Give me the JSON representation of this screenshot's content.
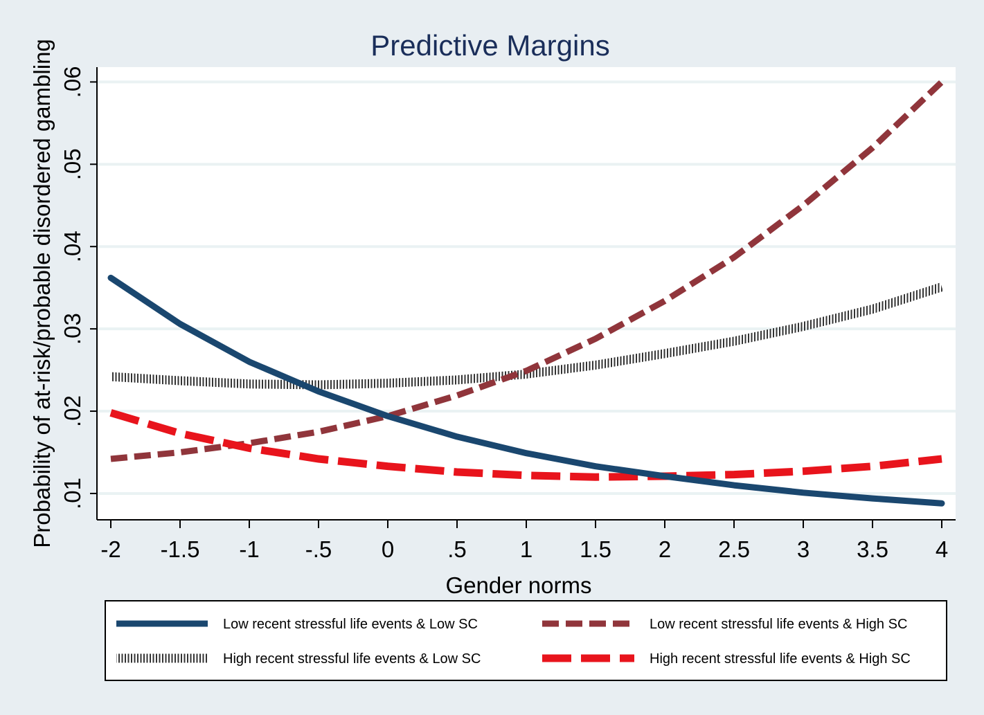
{
  "chart_data": {
    "type": "line",
    "title": "Predictive Margins",
    "xlabel": "Gender norms",
    "ylabel": "Probability of at-risk/probable disordered gambling",
    "x": [
      -2,
      -1.5,
      -1,
      -0.5,
      0,
      0.5,
      1,
      1.5,
      2,
      2.5,
      3,
      3.5,
      4
    ],
    "x_tick_labels": [
      "-2",
      "-1.5",
      "-1",
      "-.5",
      "0",
      ".5",
      "1",
      "1.5",
      "2",
      "2.5",
      "3",
      "3.5",
      "4"
    ],
    "y_ticks": [
      0.01,
      0.02,
      0.03,
      0.04,
      0.05,
      0.06
    ],
    "y_tick_labels": [
      ".01",
      ".02",
      ".03",
      ".04",
      ".05",
      ".06"
    ],
    "xlim": [
      -2.1,
      4.1
    ],
    "ylim": [
      0.0068,
      0.0618
    ],
    "grid": true,
    "legend_position": "bottom",
    "series": [
      {
        "name": "Low recent stressful life events & Low SC",
        "color": "#1a476f",
        "style": "solid",
        "values": [
          0.0362,
          0.0306,
          0.026,
          0.0224,
          0.0194,
          0.0169,
          0.0149,
          0.0133,
          0.0121,
          0.011,
          0.0101,
          0.0094,
          0.0088
        ]
      },
      {
        "name": "Low recent stressful life events & High SC",
        "color": "#90353b",
        "style": "dash",
        "values": [
          0.0142,
          0.015,
          0.0161,
          0.0175,
          0.0194,
          0.0219,
          0.0249,
          0.0288,
          0.0334,
          0.0387,
          0.045,
          0.052,
          0.06
        ]
      },
      {
        "name": "High recent stressful life events & Low SC",
        "color": "#555555",
        "style": "hatched",
        "values": [
          0.0242,
          0.0237,
          0.0233,
          0.0232,
          0.0234,
          0.0238,
          0.0245,
          0.0256,
          0.027,
          0.0285,
          0.0303,
          0.0324,
          0.0351
        ]
      },
      {
        "name": "High recent stressful life events & High SC",
        "color": "#e8141c",
        "style": "longdash",
        "values": [
          0.0198,
          0.0173,
          0.0155,
          0.0142,
          0.0133,
          0.0126,
          0.0122,
          0.012,
          0.0121,
          0.0123,
          0.0127,
          0.0133,
          0.0142
        ]
      }
    ]
  }
}
